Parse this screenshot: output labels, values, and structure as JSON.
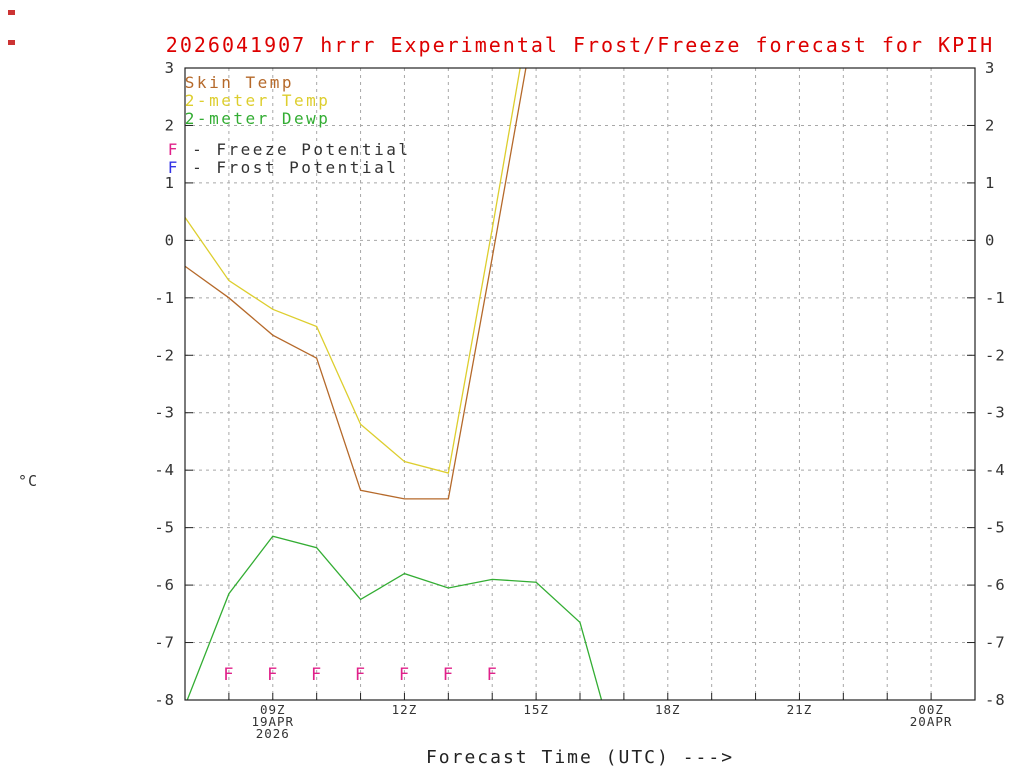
{
  "title": "2026041907 hrrr Experimental Frost/Freeze forecast for KPIH",
  "colors": {
    "title": "#dd0000",
    "skin_temp": "#b5692a",
    "temp_2m": "#ddce2e",
    "dewp_2m": "#33ad33",
    "freeze": "#e0218a",
    "frost": "#3333e6",
    "axis_text": "#333333",
    "grid": "#a8a8a8",
    "frame": "#222222",
    "corner_mark": "#cc3333"
  },
  "legend": {
    "series": [
      {
        "label": "Skin Temp",
        "color_key": "skin_temp"
      },
      {
        "label": "2-meter Temp",
        "color_key": "temp_2m"
      },
      {
        "label": "2-meter Dewp",
        "color_key": "dewp_2m"
      }
    ],
    "potentials": [
      {
        "symbol": "F",
        "label": " - Freeze Potential",
        "color_key": "freeze"
      },
      {
        "symbol": "F",
        "label": " - Frost Potential",
        "color_key": "frost"
      }
    ]
  },
  "axes": {
    "y_unit": "°C",
    "xlabel": "Forecast Time (UTC) --->"
  },
  "chart_data": {
    "type": "line",
    "title": "2026041907 hrrr Experimental Frost/Freeze forecast for KPIH",
    "xlabel": "Forecast Time (UTC) --->",
    "ylabel": "°C",
    "ylim": [
      -8,
      3
    ],
    "x_hours_range": [
      7,
      25
    ],
    "grid": "dashed, every 1 degree and every 1 hour",
    "legend_position": "top-left",
    "y_ticks": [
      3,
      2,
      1,
      0,
      -1,
      -2,
      -3,
      -4,
      -5,
      -6,
      -7,
      -8
    ],
    "x_ticks": [
      {
        "hour": 9,
        "label": "09Z",
        "sublabels": [
          "19APR",
          "2026"
        ]
      },
      {
        "hour": 12,
        "label": "12Z",
        "sublabels": []
      },
      {
        "hour": 15,
        "label": "15Z",
        "sublabels": []
      },
      {
        "hour": 18,
        "label": "18Z",
        "sublabels": []
      },
      {
        "hour": 21,
        "label": "21Z",
        "sublabels": []
      },
      {
        "hour": 24,
        "label": "00Z",
        "sublabels": [
          "20APR"
        ]
      }
    ],
    "series": [
      {
        "name": "Skin Temp",
        "color_key": "skin_temp",
        "x": [
          7,
          8,
          9,
          10,
          11,
          12,
          13,
          14,
          15
        ],
        "values": [
          -0.45,
          -1.0,
          -1.65,
          -2.05,
          -4.35,
          -4.5,
          -4.5,
          -0.3,
          4.0
        ]
      },
      {
        "name": "2-meter Temp",
        "color_key": "temp_2m",
        "x": [
          7,
          8,
          9,
          10,
          11,
          12,
          13,
          14,
          15
        ],
        "values": [
          0.4,
          -0.7,
          -1.2,
          -1.5,
          -3.2,
          -3.85,
          -4.05,
          0.2,
          4.6
        ]
      },
      {
        "name": "2-meter Dewp",
        "color_key": "dewp_2m",
        "x": [
          7,
          8,
          9,
          10,
          11,
          12,
          13,
          14,
          15,
          16,
          16.6
        ],
        "values": [
          -8.1,
          -6.15,
          -5.15,
          -5.35,
          -6.25,
          -5.8,
          -6.05,
          -5.9,
          -5.95,
          -6.65,
          -8.3
        ]
      }
    ],
    "freeze_markers": {
      "symbol": "F",
      "color_key": "freeze",
      "hours": [
        8,
        9,
        10,
        11,
        12,
        13,
        14
      ],
      "value": -7.55
    }
  }
}
